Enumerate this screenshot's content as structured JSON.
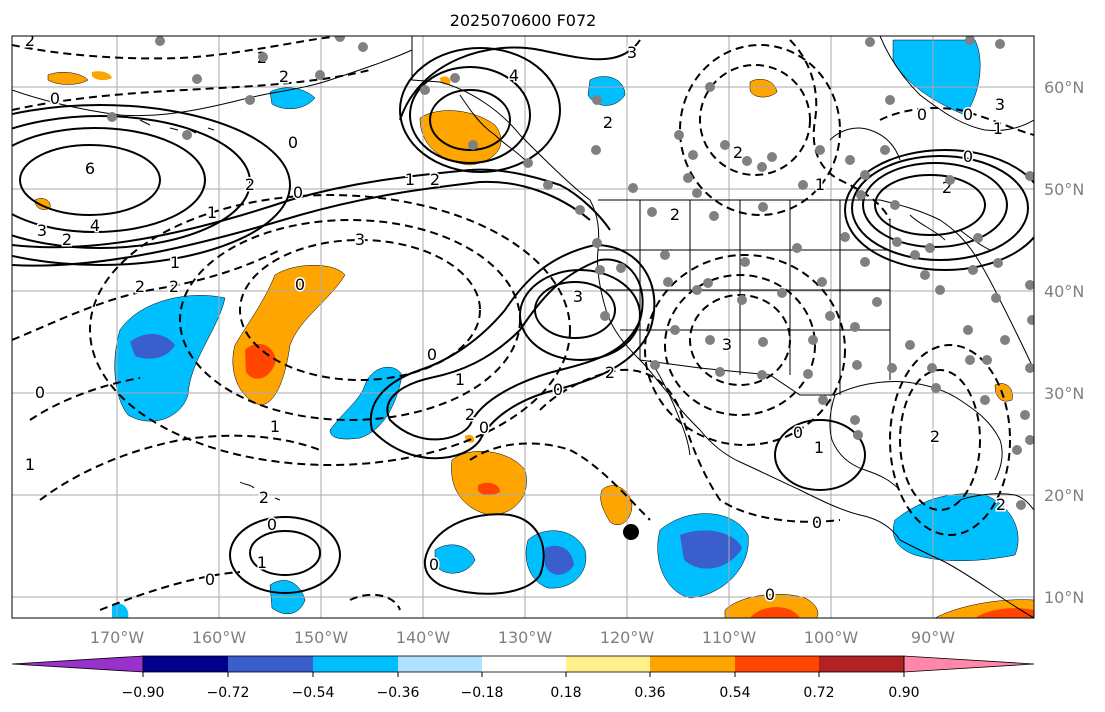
{
  "title": "2025070600 F072",
  "lon_ticks": [
    "170°W",
    "160°W",
    "150°W",
    "140°W",
    "130°W",
    "120°W",
    "110°W",
    "100°W",
    "90°W"
  ],
  "lat_ticks": [
    "60°N",
    "50°N",
    "40°N",
    "30°N",
    "20°N",
    "10°N"
  ],
  "colorbar": {
    "tick_labels": [
      "−0.90",
      "−0.72",
      "−0.54",
      "−0.36",
      "−0.18",
      "0.18",
      "0.36",
      "0.54",
      "0.72",
      "0.90"
    ],
    "colors": [
      "#9932cc",
      "#00008b",
      "#3a5fcd",
      "#00bfff",
      "#b0e2ff",
      "#ffffff",
      "#fff08c",
      "#ffa500",
      "#ff4500",
      "#b22222",
      "#ff88aa"
    ]
  },
  "contour_labels": [
    "0",
    "2",
    "6",
    "4",
    "3",
    "2",
    "0",
    "2",
    "0",
    "1",
    "2",
    "1",
    "3",
    "2",
    "2",
    "4",
    "2",
    "0",
    "3",
    "0",
    "2",
    "1",
    "3",
    "0",
    "2",
    "0",
    "3",
    "0",
    "2",
    "0",
    "1",
    "1",
    "2",
    "0",
    "0",
    "1",
    "2",
    "2",
    "0",
    "1",
    "0",
    "0",
    "1",
    "1",
    "0",
    "2",
    "2",
    "0",
    "2",
    "3",
    "1",
    "0",
    "2"
  ],
  "marker": "storm-center"
}
